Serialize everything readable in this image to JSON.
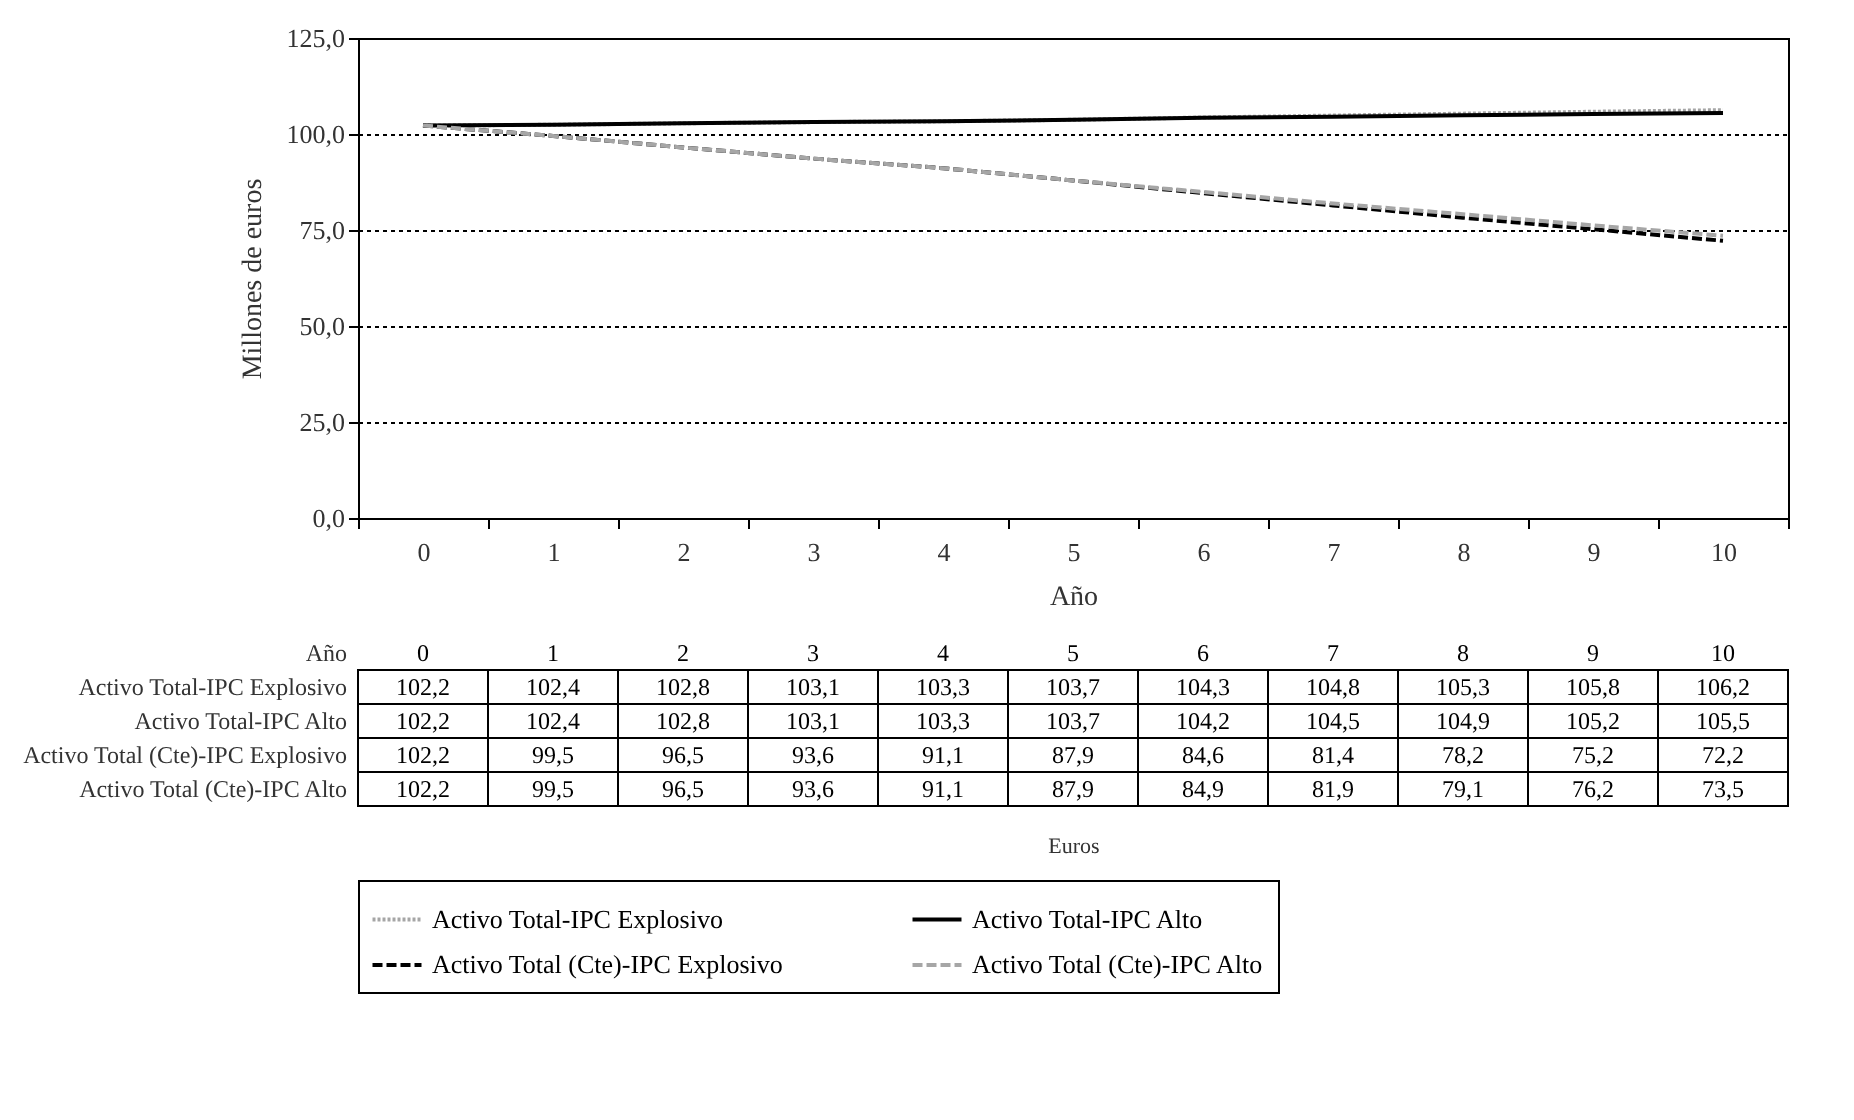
{
  "chart_data": {
    "type": "line",
    "xlabel": "Año",
    "ylabel": "Millones de euros",
    "categories": [
      "0",
      "1",
      "2",
      "3",
      "4",
      "5",
      "6",
      "7",
      "8",
      "9",
      "10"
    ],
    "ylim": [
      0,
      125
    ],
    "yticks": [
      {
        "value": 0,
        "label": "0,0"
      },
      {
        "value": 25,
        "label": "25,0"
      },
      {
        "value": 50,
        "label": "50,0"
      },
      {
        "value": 75,
        "label": "75,0"
      },
      {
        "value": 100,
        "label": "100,0"
      },
      {
        "value": 125,
        "label": "125,0"
      }
    ],
    "grid": "y",
    "legend": "bottom",
    "annotations": [
      "Euros"
    ],
    "series": [
      {
        "name": "Activo Total-IPC Explosivo",
        "color": "#a6a6a6",
        "line_style": "dotted",
        "values": [
          102.2,
          102.4,
          102.8,
          103.1,
          103.3,
          103.7,
          104.3,
          104.8,
          105.3,
          105.8,
          106.2
        ],
        "value_labels": [
          "102,2",
          "102,4",
          "102,8",
          "103,1",
          "103,3",
          "103,7",
          "104,3",
          "104,8",
          "105,3",
          "105,8",
          "106,2"
        ]
      },
      {
        "name": "Activo Total-IPC Alto",
        "color": "#000000",
        "line_style": "solid",
        "values": [
          102.2,
          102.4,
          102.8,
          103.1,
          103.3,
          103.7,
          104.2,
          104.5,
          104.9,
          105.2,
          105.5
        ],
        "value_labels": [
          "102,2",
          "102,4",
          "102,8",
          "103,1",
          "103,3",
          "103,7",
          "104,2",
          "104,5",
          "104,9",
          "105,2",
          "105,5"
        ]
      },
      {
        "name": "Activo Total (Cte)-IPC Explosivo",
        "color": "#000000",
        "line_style": "dashed",
        "values": [
          102.2,
          99.5,
          96.5,
          93.6,
          91.1,
          87.9,
          84.6,
          81.4,
          78.2,
          75.2,
          72.2
        ],
        "value_labels": [
          "102,2",
          "99,5",
          "96,5",
          "93,6",
          "91,1",
          "87,9",
          "84,6",
          "81,4",
          "78,2",
          "75,2",
          "72,2"
        ]
      },
      {
        "name": "Activo Total (Cte)-IPC Alto",
        "color": "#a6a6a6",
        "line_style": "dashed",
        "values": [
          102.2,
          99.5,
          96.5,
          93.6,
          91.1,
          87.9,
          84.9,
          81.9,
          79.1,
          76.2,
          73.5
        ],
        "value_labels": [
          "102,2",
          "99,5",
          "96,5",
          "93,6",
          "91,1",
          "87,9",
          "84,9",
          "81,9",
          "79,1",
          "76,2",
          "73,5"
        ]
      }
    ]
  }
}
